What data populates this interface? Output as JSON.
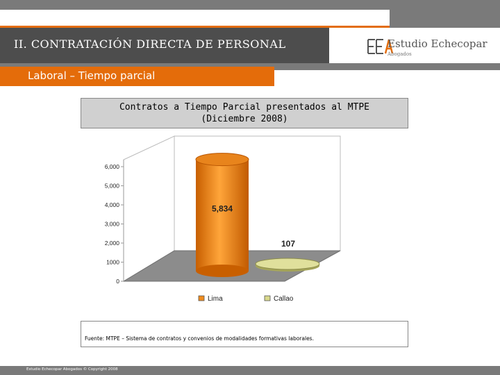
{
  "header": {
    "section_title": "II. CONTRATACIÓN DIRECTA DE PERSONAL",
    "logo_mark": "EEA",
    "logo_name": "Estudio Echecopar",
    "logo_sub": "Abogados"
  },
  "subheader": {
    "title": "Laboral – Tiempo parcial"
  },
  "chart_title": {
    "line1": "Contratos a Tiempo Parcial presentados al MTPE",
    "line2": "(Diciembre 2008)"
  },
  "chart_data": {
    "type": "bar",
    "title": "Contratos a Tiempo Parcial presentados al MTPE (Diciembre 2008)",
    "categories": [
      "Lima",
      "Callao"
    ],
    "values": [
      5834,
      107
    ],
    "data_labels": [
      "5,834",
      "107"
    ],
    "ylim": [
      0,
      6000
    ],
    "yticks": [
      "0",
      "1000",
      "2,000",
      "3,000",
      "4,000",
      "5,000",
      "6,000"
    ],
    "colors": [
      "#f08c1e",
      "#d9d98c"
    ],
    "grid": false,
    "legend": "bottom"
  },
  "source": {
    "text": "Fuente: MTPE – Sistema de contratos y convenios de modalidades formativas laborales."
  },
  "footer": {
    "text": "Estudio Echecopar Abogados © Copyright 2008"
  }
}
